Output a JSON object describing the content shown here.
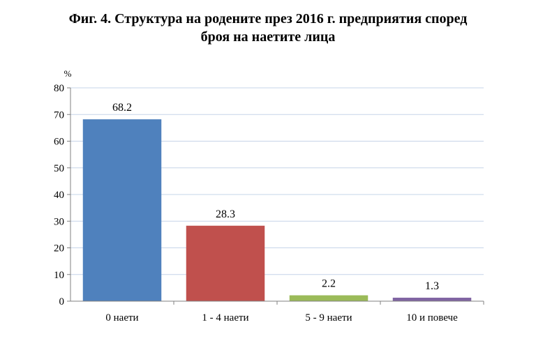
{
  "chart_data": {
    "type": "bar",
    "title": {
      "line1": "Фиг. 4. Структура на родените през 2016 г. предприятия според",
      "line2": "броя на наетите лица"
    },
    "ylabel": "%",
    "xlabel": "",
    "ylim": [
      0,
      80
    ],
    "yticks": [
      "0",
      "10",
      "20",
      "30",
      "40",
      "50",
      "60",
      "70",
      "80"
    ],
    "categories": [
      "0 наети",
      "1 - 4 наети",
      "5 - 9 наети",
      "10 и повече"
    ],
    "values": [
      68.2,
      28.3,
      2.2,
      1.3
    ],
    "value_labels": [
      "68.2",
      "28.3",
      "2.2",
      "1.3"
    ],
    "colors": [
      "#4F81BD",
      "#C0504D",
      "#9BBB59",
      "#8064A2"
    ],
    "grid": true,
    "gridline_color": "#C6D4E8",
    "legend": "none"
  }
}
